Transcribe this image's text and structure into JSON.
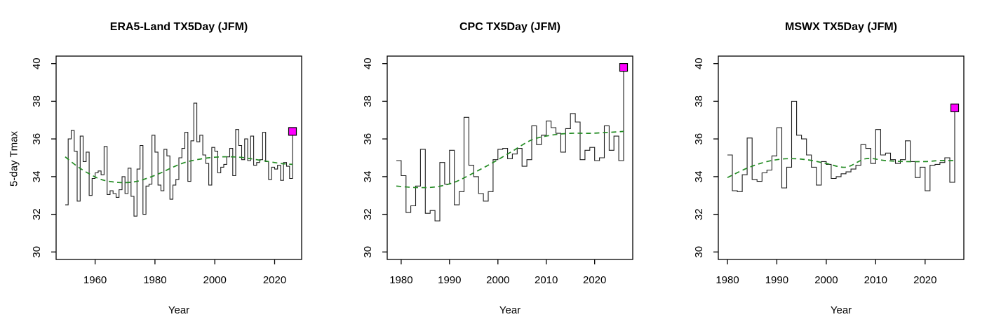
{
  "figure_caption": "Three R base-graphics time-series panels of 5-day maximum temperature (TX5Day) for January-February-March, each with a black step line, a dark-green dashed loess trend line, and a magenta filled square marking the 2026 value",
  "shared": {
    "xlabel": "Year",
    "ylabel": "5-day Tmax",
    "y_ticks": [
      30,
      32,
      34,
      36,
      38,
      40
    ],
    "colors": {
      "step_line": "#1c1c1c",
      "trend": "#228B22",
      "highlight_fill": "#FF00FF",
      "highlight_stroke": "#000000",
      "axis": "#000000",
      "background": "#ffffff"
    }
  },
  "chart_data": [
    {
      "type": "line",
      "line_style": "step",
      "title": "ERA5-Land TX5Day (JFM)",
      "xlabel": "Year",
      "ylabel": "5-day Tmax",
      "x_ticks": [
        1960,
        1980,
        2000,
        2020
      ],
      "y_ticks": [
        30,
        32,
        34,
        36,
        38,
        40
      ],
      "xlim": [
        1946.96,
        2029.04
      ],
      "ylim": [
        29.6,
        40.4
      ],
      "grid": false,
      "legend": false,
      "years": [
        1950,
        1951,
        1952,
        1953,
        1954,
        1955,
        1956,
        1957,
        1958,
        1959,
        1960,
        1961,
        1962,
        1963,
        1964,
        1965,
        1966,
        1967,
        1968,
        1969,
        1970,
        1971,
        1972,
        1973,
        1974,
        1975,
        1976,
        1977,
        1978,
        1979,
        1980,
        1981,
        1982,
        1983,
        1984,
        1985,
        1986,
        1987,
        1988,
        1989,
        1990,
        1991,
        1992,
        1993,
        1994,
        1995,
        1996,
        1997,
        1998,
        1999,
        2000,
        2001,
        2002,
        2003,
        2004,
        2005,
        2006,
        2007,
        2008,
        2009,
        2010,
        2011,
        2012,
        2013,
        2014,
        2015,
        2016,
        2017,
        2018,
        2019,
        2020,
        2021,
        2022,
        2023,
        2024,
        2025,
        2026
      ],
      "values": [
        32.5,
        36.0,
        36.45,
        35.35,
        32.7,
        36.15,
        34.8,
        35.3,
        33.0,
        33.9,
        34.2,
        34.3,
        34.1,
        35.6,
        33.05,
        33.25,
        33.1,
        32.9,
        33.3,
        34.0,
        33.1,
        34.45,
        32.95,
        31.9,
        34.4,
        35.65,
        32.0,
        33.5,
        33.6,
        36.2,
        35.3,
        33.55,
        33.25,
        35.45,
        35.1,
        32.8,
        33.55,
        33.85,
        35.0,
        35.5,
        36.35,
        33.75,
        35.9,
        37.9,
        35.85,
        36.2,
        35.15,
        34.7,
        33.55,
        35.55,
        35.35,
        34.2,
        34.5,
        34.65,
        35.05,
        35.5,
        34.05,
        36.5,
        35.65,
        34.9,
        36.0,
        34.85,
        36.15,
        34.6,
        34.75,
        34.9,
        36.35,
        34.8,
        33.85,
        34.5,
        34.4,
        34.6,
        33.8,
        34.75,
        34.55,
        33.9,
        36.4
      ],
      "trend": {
        "type": "loess",
        "style": "dashed",
        "color": "#228B22",
        "years": [
          1950,
          1954,
          1958,
          1962,
          1966,
          1970,
          1974,
          1978,
          1982,
          1986,
          1990,
          1994,
          1998,
          2002,
          2006,
          2010,
          2014,
          2018,
          2022,
          2026
        ],
        "values": [
          35.05,
          34.55,
          34.15,
          33.85,
          33.72,
          33.68,
          33.75,
          33.95,
          34.2,
          34.5,
          34.75,
          34.9,
          35.0,
          35.05,
          35.05,
          35.0,
          34.9,
          34.8,
          34.7,
          34.65
        ]
      },
      "highlight_point": {
        "year": 2026,
        "value": 36.4,
        "marker": "filled-square",
        "color": "#FF00FF"
      }
    },
    {
      "type": "line",
      "line_style": "step",
      "title": "CPC TX5Day (JFM)",
      "xlabel": "Year",
      "ylabel": "",
      "x_ticks": [
        1980,
        1990,
        2000,
        2010,
        2020
      ],
      "y_ticks": [
        30,
        32,
        34,
        36,
        38,
        40
      ],
      "xlim": [
        1977.12,
        2027.88
      ],
      "ylim": [
        29.6,
        40.4
      ],
      "grid": false,
      "legend": false,
      "years": [
        1979,
        1980,
        1981,
        1982,
        1983,
        1984,
        1985,
        1986,
        1987,
        1988,
        1989,
        1990,
        1991,
        1992,
        1993,
        1994,
        1995,
        1996,
        1997,
        1998,
        1999,
        2000,
        2001,
        2002,
        2003,
        2004,
        2005,
        2006,
        2007,
        2008,
        2009,
        2010,
        2011,
        2012,
        2013,
        2014,
        2015,
        2016,
        2017,
        2018,
        2019,
        2020,
        2021,
        2022,
        2023,
        2024,
        2025,
        2026
      ],
      "values": [
        34.85,
        34.05,
        32.1,
        32.45,
        33.5,
        35.45,
        32.05,
        32.2,
        31.65,
        34.75,
        33.6,
        35.4,
        32.5,
        33.2,
        37.15,
        34.6,
        34.0,
        33.1,
        32.7,
        33.2,
        34.9,
        35.45,
        35.5,
        34.95,
        35.2,
        35.5,
        34.55,
        34.9,
        36.7,
        35.7,
        36.2,
        36.95,
        36.6,
        36.3,
        35.3,
        36.55,
        37.35,
        36.9,
        34.9,
        35.4,
        35.55,
        34.85,
        35.0,
        36.7,
        35.4,
        36.15,
        34.85,
        39.8
      ],
      "trend": {
        "type": "loess",
        "style": "dashed",
        "color": "#228B22",
        "years": [
          1979,
          1983,
          1987,
          1991,
          1995,
          1999,
          2003,
          2007,
          2011,
          2015,
          2019,
          2023,
          2026
        ],
        "values": [
          33.5,
          33.42,
          33.45,
          33.7,
          34.2,
          34.75,
          35.35,
          35.95,
          36.2,
          36.3,
          36.3,
          36.35,
          36.4
        ]
      },
      "highlight_point": {
        "year": 2026,
        "value": 39.8,
        "marker": "filled-square",
        "color": "#FF00FF"
      }
    },
    {
      "type": "line",
      "line_style": "step",
      "title": "MSWX TX5Day (JFM)",
      "xlabel": "Year",
      "ylabel": "",
      "x_ticks": [
        1980,
        1990,
        2000,
        2010,
        2020
      ],
      "y_ticks": [
        30,
        32,
        34,
        36,
        38,
        40
      ],
      "xlim": [
        1978.16,
        2027.84
      ],
      "ylim": [
        29.6,
        40.4
      ],
      "grid": false,
      "legend": false,
      "years": [
        1980,
        1981,
        1982,
        1983,
        1984,
        1985,
        1986,
        1987,
        1988,
        1989,
        1990,
        1991,
        1992,
        1993,
        1994,
        1995,
        1996,
        1997,
        1998,
        1999,
        2000,
        2001,
        2002,
        2003,
        2004,
        2005,
        2006,
        2007,
        2008,
        2009,
        2010,
        2011,
        2012,
        2013,
        2014,
        2015,
        2016,
        2017,
        2018,
        2019,
        2020,
        2021,
        2022,
        2023,
        2024,
        2025,
        2026
      ],
      "values": [
        35.15,
        33.25,
        33.2,
        34.1,
        36.05,
        33.85,
        33.75,
        34.2,
        34.35,
        35.1,
        36.6,
        33.4,
        34.5,
        38.0,
        36.2,
        36.0,
        35.15,
        34.5,
        33.55,
        34.8,
        34.65,
        33.9,
        34.0,
        34.15,
        34.25,
        34.4,
        34.6,
        35.7,
        35.5,
        34.7,
        36.5,
        35.15,
        35.25,
        34.9,
        34.7,
        34.9,
        35.9,
        34.8,
        33.95,
        34.5,
        33.25,
        34.6,
        34.65,
        34.75,
        35.0,
        33.7,
        37.65
      ],
      "trend": {
        "type": "loess",
        "style": "dashed",
        "color": "#228B22",
        "years": [
          1980,
          1984,
          1988,
          1992,
          1996,
          2000,
          2004,
          2008,
          2012,
          2016,
          2020,
          2023,
          2026
        ],
        "values": [
          33.95,
          34.45,
          34.8,
          34.95,
          34.9,
          34.7,
          34.5,
          34.95,
          34.85,
          34.8,
          34.8,
          34.85,
          34.85
        ]
      },
      "highlight_point": {
        "year": 2026,
        "value": 37.65,
        "marker": "filled-square",
        "color": "#FF00FF"
      }
    }
  ]
}
